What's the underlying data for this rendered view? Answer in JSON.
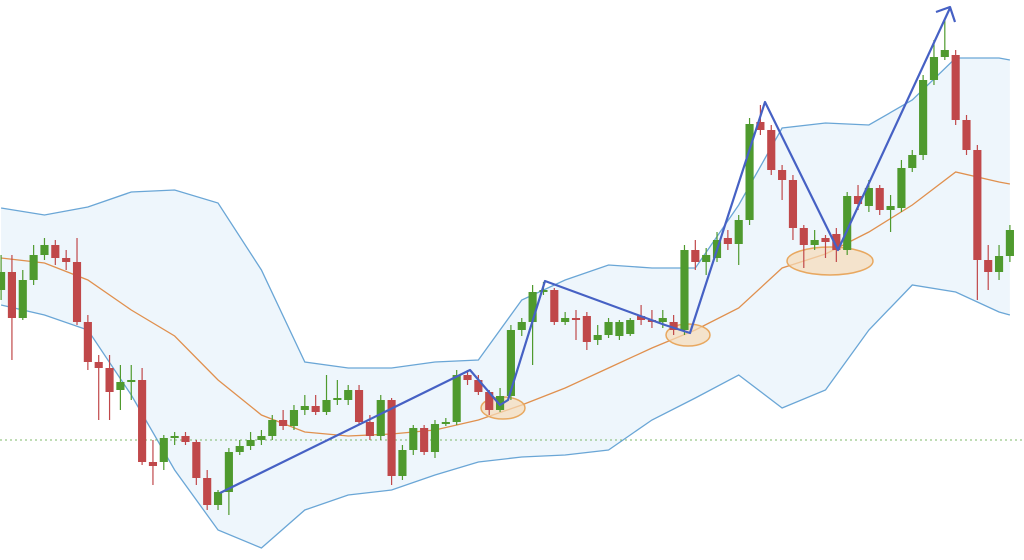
{
  "chart_data": {
    "type": "candlestick",
    "xlim": [
      -0.1,
      94.3
    ],
    "ylim": [
      0,
      560
    ],
    "candles": {
      "up_color": "#4f9a2e",
      "down_color": "#c0484a",
      "open": [
        270,
        288,
        242,
        280,
        305,
        315,
        302,
        298,
        238,
        198,
        192,
        170,
        178,
        180,
        98,
        98,
        122,
        124,
        118,
        82,
        55,
        68,
        108,
        114,
        120,
        124,
        140,
        134,
        150,
        154,
        148,
        160,
        160,
        170,
        138,
        124,
        160,
        84,
        110,
        132,
        108,
        136,
        138,
        185,
        180,
        168,
        150,
        164,
        230,
        238,
        268,
        270,
        238,
        242,
        244,
        220,
        225,
        224,
        226,
        244,
        240,
        238,
        238,
        230,
        310,
        298,
        302,
        322,
        316,
        340,
        438,
        430,
        390,
        380,
        332,
        315,
        322,
        326,
        310,
        364,
        354,
        372,
        350,
        352,
        392,
        405,
        480,
        503,
        505,
        440,
        410,
        300,
        288,
        304
      ],
      "high": [
        305,
        305,
        290,
        315,
        322,
        320,
        310,
        322,
        245,
        205,
        205,
        195,
        195,
        192,
        120,
        125,
        128,
        128,
        120,
        90,
        70,
        112,
        120,
        128,
        130,
        145,
        150,
        155,
        165,
        165,
        185,
        180,
        175,
        175,
        145,
        165,
        162,
        115,
        135,
        135,
        140,
        142,
        190,
        190,
        185,
        170,
        172,
        235,
        242,
        275,
        278,
        272,
        248,
        250,
        248,
        235,
        242,
        240,
        242,
        255,
        250,
        250,
        245,
        315,
        320,
        312,
        328,
        330,
        345,
        442,
        455,
        435,
        395,
        385,
        335,
        330,
        325,
        332,
        368,
        375,
        380,
        375,
        365,
        400,
        410,
        485,
        520,
        540,
        510,
        445,
        415,
        315,
        315,
        335
      ],
      "low": [
        260,
        200,
        240,
        275,
        300,
        295,
        290,
        235,
        190,
        140,
        140,
        150,
        160,
        95,
        75,
        90,
        115,
        115,
        75,
        50,
        50,
        45,
        105,
        110,
        115,
        120,
        130,
        130,
        145,
        145,
        145,
        155,
        155,
        135,
        120,
        120,
        75,
        80,
        105,
        105,
        102,
        134,
        135,
        175,
        165,
        145,
        148,
        160,
        224,
        195,
        265,
        235,
        235,
        220,
        210,
        215,
        222,
        220,
        224,
        235,
        232,
        232,
        225,
        225,
        290,
        285,
        298,
        310,
        295,
        335,
        425,
        385,
        360,
        320,
        292,
        310,
        302,
        298,
        305,
        350,
        348,
        345,
        328,
        348,
        388,
        400,
        475,
        500,
        435,
        405,
        260,
        270,
        280,
        298
      ],
      "close": [
        288,
        242,
        280,
        305,
        315,
        302,
        298,
        238,
        198,
        192,
        168,
        178,
        180,
        98,
        94,
        122,
        124,
        118,
        82,
        55,
        68,
        108,
        114,
        120,
        124,
        140,
        134,
        150,
        154,
        148,
        160,
        162,
        170,
        138,
        124,
        160,
        84,
        110,
        132,
        108,
        136,
        138,
        185,
        180,
        168,
        150,
        164,
        230,
        238,
        268,
        270,
        238,
        242,
        240,
        218,
        225,
        238,
        238,
        240,
        240,
        238,
        242,
        230,
        310,
        298,
        305,
        320,
        316,
        340,
        436,
        430,
        390,
        380,
        332,
        315,
        320,
        318,
        310,
        364,
        356,
        372,
        350,
        354,
        392,
        405,
        480,
        503,
        510,
        440,
        410,
        300,
        288,
        304,
        330
      ]
    },
    "bands": {
      "fill": "#eef6fc",
      "edge_color": "#6aa6d6",
      "middle_color": "#e0904e",
      "x": [
        0,
        4,
        8,
        12,
        16,
        20,
        24,
        28,
        32,
        36,
        40,
        44,
        48,
        52,
        56,
        60,
        64,
        68,
        72,
        76,
        80,
        84,
        88,
        92,
        93
      ],
      "upper": [
        352,
        345,
        353,
        368,
        370,
        357,
        290,
        198,
        192,
        192,
        198,
        200,
        260,
        280,
        295,
        292,
        292,
        355,
        432,
        437,
        435,
        460,
        502,
        502,
        500
      ],
      "middle": [
        302,
        297,
        280,
        250,
        224,
        180,
        145,
        128,
        124,
        126,
        130,
        140,
        155,
        172,
        192,
        212,
        230,
        252,
        292,
        306,
        328,
        355,
        388,
        378,
        376
      ],
      "lower": [
        255,
        245,
        230,
        165,
        90,
        30,
        12,
        50,
        65,
        70,
        85,
        98,
        103,
        105,
        110,
        140,
        162,
        185,
        152,
        170,
        230,
        275,
        268,
        248,
        245
      ]
    }
  }
}
